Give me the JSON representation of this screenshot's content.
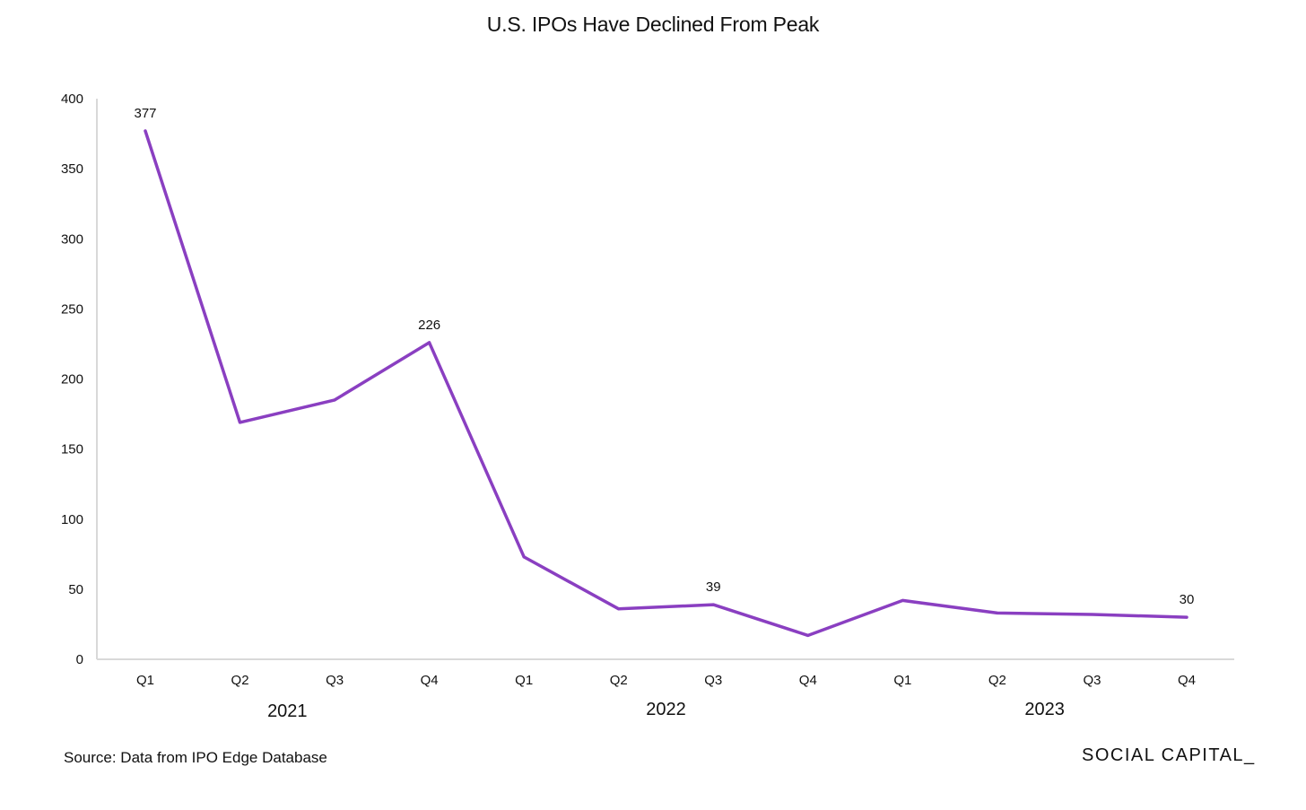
{
  "title": "U.S. IPOs Have Declined From Peak",
  "source_note": "Source: Data from IPO Edge Database",
  "brand": "SOCIAL CAPITAL_",
  "chart_data": {
    "type": "line",
    "title": "U.S. IPOs Have Declined From Peak",
    "xlabel": "",
    "ylabel": "",
    "categories": [
      "Q1",
      "Q2",
      "Q3",
      "Q4",
      "Q1",
      "Q2",
      "Q3",
      "Q4",
      "Q1",
      "Q2",
      "Q3",
      "Q4"
    ],
    "category_groups": [
      {
        "label": "2021",
        "categories": [
          "Q1",
          "Q2",
          "Q3",
          "Q4"
        ]
      },
      {
        "label": "2022",
        "categories": [
          "Q1",
          "Q2",
          "Q3",
          "Q4"
        ]
      },
      {
        "label": "2023",
        "categories": [
          "Q1",
          "Q2",
          "Q3",
          "Q4"
        ]
      }
    ],
    "series": [
      {
        "values": [
          377,
          169,
          185,
          226,
          73,
          36,
          39,
          17,
          42,
          33,
          32,
          30
        ],
        "color": "#8a3fc1"
      }
    ],
    "data_labels": [
      {
        "index": 0,
        "text": "377"
      },
      {
        "index": 3,
        "text": "226"
      },
      {
        "index": 6,
        "text": "39"
      },
      {
        "index": 11,
        "text": "30"
      }
    ],
    "yticks": [
      0,
      50,
      100,
      150,
      200,
      250,
      300,
      350,
      400
    ],
    "ylim": [
      0,
      400
    ],
    "grid": false,
    "legend": "none"
  }
}
